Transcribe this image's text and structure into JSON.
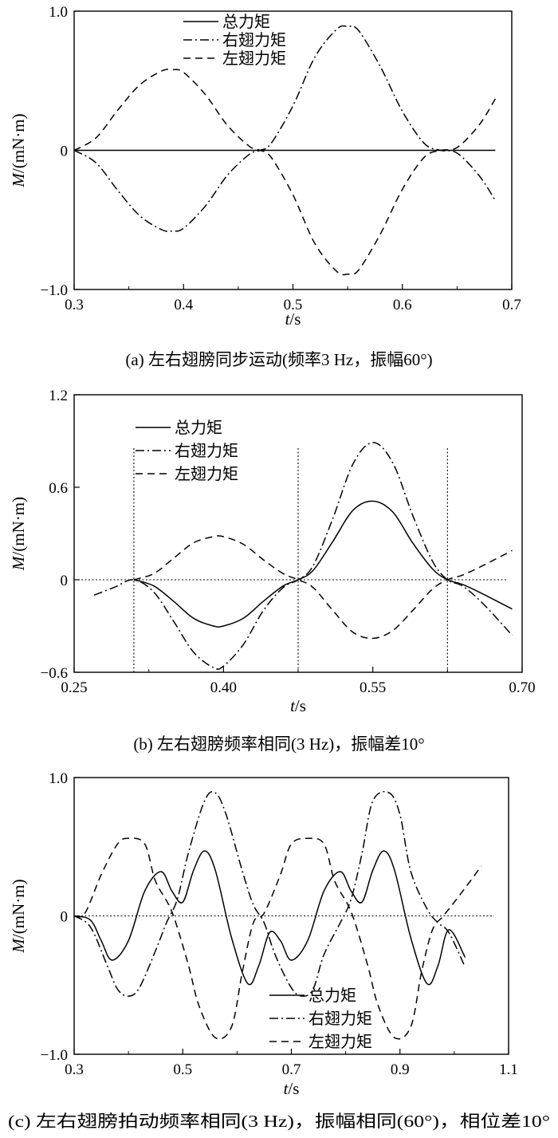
{
  "chart_data": [
    {
      "type": "line",
      "caption": "(a) 左右翅膀同步运动(频率3 Hz，振幅60°)",
      "xlabel_var": "t",
      "xlabel_unit": "/s",
      "ylabel_var": "M",
      "ylabel_unit": "/(mN·m)",
      "xlim": [
        0.3,
        0.7
      ],
      "ylim": [
        -1.0,
        1.0
      ],
      "xticks": [
        0.3,
        0.4,
        0.5,
        0.6,
        0.7
      ],
      "xtick_labels": [
        "0.3",
        "0.4",
        "0.5",
        "0.6",
        "0.7"
      ],
      "yticks": [
        1.0,
        0,
        -1.0
      ],
      "ytick_labels": [
        "1.0",
        "0",
        "−1.0"
      ],
      "legend": [
        "总力矩",
        "右翅力矩",
        "左翅力矩"
      ],
      "legend_position": "top-center",
      "vlines": [],
      "zero_line": false,
      "series": [
        {
          "name": "总力矩",
          "style": "solid",
          "x": [
            0.3,
            0.685
          ],
          "y": [
            0,
            0
          ]
        },
        {
          "name": "右翅力矩",
          "style": "dashdot",
          "x": [
            0.3,
            0.32,
            0.34,
            0.36,
            0.38,
            0.39,
            0.4,
            0.42,
            0.44,
            0.46,
            0.47,
            0.48,
            0.5,
            0.52,
            0.54,
            0.55,
            0.56,
            0.58,
            0.6,
            0.62,
            0.635,
            0.65,
            0.67,
            0.685
          ],
          "y": [
            0,
            -0.09,
            -0.29,
            -0.47,
            -0.57,
            -0.58,
            -0.56,
            -0.4,
            -0.18,
            -0.03,
            0,
            0.05,
            0.32,
            0.67,
            0.87,
            0.89,
            0.86,
            0.6,
            0.28,
            0.05,
            0,
            -0.02,
            -0.18,
            -0.36
          ]
        },
        {
          "name": "左翅力矩",
          "style": "dashed",
          "x": [
            0.3,
            0.32,
            0.34,
            0.36,
            0.38,
            0.39,
            0.4,
            0.42,
            0.44,
            0.46,
            0.47,
            0.48,
            0.5,
            0.52,
            0.54,
            0.55,
            0.56,
            0.58,
            0.6,
            0.62,
            0.635,
            0.65,
            0.67,
            0.685
          ],
          "y": [
            0,
            0.09,
            0.29,
            0.47,
            0.57,
            0.58,
            0.56,
            0.4,
            0.18,
            0.03,
            0,
            -0.05,
            -0.32,
            -0.67,
            -0.87,
            -0.89,
            -0.86,
            -0.6,
            -0.28,
            -0.05,
            0,
            0.02,
            0.18,
            0.37
          ]
        }
      ]
    },
    {
      "type": "line",
      "caption": "(b) 左右翅膀频率相同(3 Hz)，振幅差10°",
      "xlabel_var": "t",
      "xlabel_unit": "/s",
      "ylabel_var": "M",
      "ylabel_unit": "/(mN·m)",
      "xlim": [
        0.25,
        0.7
      ],
      "ylim": [
        -0.6,
        1.2
      ],
      "xticks": [
        0.25,
        0.4,
        0.55,
        0.7
      ],
      "xtick_labels": [
        "0.25",
        "0.40",
        "0.55",
        "0.70"
      ],
      "yticks": [
        1.2,
        0.6,
        0,
        -0.6
      ],
      "ytick_labels": [
        "1.2",
        "0.6",
        "0",
        "−0.6"
      ],
      "legend": [
        "总力矩",
        "右翅力矩",
        "左翅力矩"
      ],
      "legend_position": "top-left",
      "vlines": [
        0.31,
        0.475,
        0.625
      ],
      "zero_line": true,
      "series": [
        {
          "name": "总力矩",
          "style": "solid",
          "x": [
            0.31,
            0.33,
            0.35,
            0.37,
            0.39,
            0.4,
            0.42,
            0.44,
            0.46,
            0.475,
            0.49,
            0.51,
            0.53,
            0.55,
            0.57,
            0.59,
            0.61,
            0.625,
            0.64,
            0.66,
            0.69
          ],
          "y": [
            0,
            -0.04,
            -0.14,
            -0.25,
            -0.3,
            -0.3,
            -0.25,
            -0.14,
            -0.04,
            0,
            0.06,
            0.25,
            0.45,
            0.51,
            0.44,
            0.24,
            0.07,
            0,
            -0.03,
            -0.09,
            -0.19
          ]
        },
        {
          "name": "右翅力矩",
          "style": "dashdot",
          "x": [
            0.27,
            0.29,
            0.31,
            0.33,
            0.35,
            0.37,
            0.39,
            0.4,
            0.42,
            0.44,
            0.46,
            0.475,
            0.49,
            0.51,
            0.53,
            0.55,
            0.57,
            0.59,
            0.61,
            0.625,
            0.64,
            0.66,
            0.69
          ],
          "y": [
            -0.1,
            -0.05,
            0,
            -0.08,
            -0.27,
            -0.47,
            -0.57,
            -0.56,
            -0.42,
            -0.2,
            -0.05,
            0,
            0.09,
            0.4,
            0.75,
            0.89,
            0.76,
            0.42,
            0.12,
            0,
            -0.04,
            -0.15,
            -0.36
          ]
        },
        {
          "name": "左翅力矩",
          "style": "dashed",
          "x": [
            0.31,
            0.33,
            0.35,
            0.37,
            0.39,
            0.4,
            0.42,
            0.44,
            0.46,
            0.475,
            0.49,
            0.51,
            0.53,
            0.55,
            0.57,
            0.59,
            0.61,
            0.625,
            0.64,
            0.66,
            0.69
          ],
          "y": [
            0,
            0.04,
            0.14,
            0.24,
            0.28,
            0.28,
            0.23,
            0.13,
            0.04,
            0,
            -0.05,
            -0.2,
            -0.34,
            -0.38,
            -0.33,
            -0.2,
            -0.06,
            0,
            0.03,
            0.09,
            0.19
          ]
        }
      ]
    },
    {
      "type": "line",
      "caption": "(c) 左右翅膀拍动频率相同(3 Hz)，振幅相同(60°)，相位差10°",
      "xlabel_var": "t",
      "xlabel_unit": "/s",
      "ylabel_var": "M",
      "ylabel_unit": "/(mN·m)",
      "xlim": [
        0.3,
        1.1
      ],
      "ylim": [
        -1.0,
        1.0
      ],
      "xticks": [
        0.3,
        0.5,
        0.7,
        0.9,
        1.1
      ],
      "xtick_labels": [
        "0.3",
        "0.5",
        "0.7",
        "0.9",
        "1.1"
      ],
      "yticks": [
        1.0,
        0,
        -1.0
      ],
      "ytick_labels": [
        "1.0",
        "0",
        "−1.0"
      ],
      "legend": [
        "总力矩",
        "右翅力矩",
        "左翅力矩"
      ],
      "legend_position": "bottom-center",
      "vlines": [],
      "zero_line": true,
      "series": [
        {
          "name": "总力矩",
          "style": "solid",
          "x": [
            0.3,
            0.33,
            0.35,
            0.37,
            0.4,
            0.43,
            0.46,
            0.48,
            0.5,
            0.52,
            0.54,
            0.56,
            0.59,
            0.62,
            0.64,
            0.66,
            0.68,
            0.7,
            0.73,
            0.76,
            0.79,
            0.81,
            0.83,
            0.85,
            0.87,
            0.89,
            0.92,
            0.95,
            0.97,
            0.99,
            1.02
          ],
          "y": [
            0,
            -0.03,
            -0.18,
            -0.32,
            -0.18,
            0.18,
            0.32,
            0.18,
            0.1,
            0.33,
            0.47,
            0.33,
            -0.16,
            -0.49,
            -0.36,
            -0.12,
            -0.18,
            -0.32,
            -0.18,
            0.18,
            0.32,
            0.18,
            0.1,
            0.33,
            0.47,
            0.33,
            -0.16,
            -0.49,
            -0.36,
            -0.1,
            -0.3
          ]
        },
        {
          "name": "右翅力矩",
          "style": "dashdot",
          "x": [
            0.3,
            0.33,
            0.36,
            0.38,
            0.4,
            0.42,
            0.45,
            0.47,
            0.49,
            0.51,
            0.54,
            0.56,
            0.58,
            0.61,
            0.63,
            0.65,
            0.67,
            0.7,
            0.72,
            0.74,
            0.76,
            0.79,
            0.81,
            0.83,
            0.85,
            0.88,
            0.9,
            0.92,
            0.95,
            0.97,
            0.99,
            1.02
          ],
          "y": [
            0,
            -0.08,
            -0.35,
            -0.53,
            -0.58,
            -0.52,
            -0.25,
            -0.05,
            0.12,
            0.45,
            0.83,
            0.89,
            0.73,
            0.32,
            0.08,
            -0.05,
            -0.28,
            -0.52,
            -0.58,
            -0.53,
            -0.28,
            -0.05,
            0.12,
            0.45,
            0.83,
            0.89,
            0.73,
            0.32,
            0.05,
            -0.05,
            -0.12,
            -0.37
          ]
        },
        {
          "name": "左翅力矩",
          "style": "dashed",
          "x": [
            0.3,
            0.32,
            0.35,
            0.38,
            0.4,
            0.43,
            0.45,
            0.48,
            0.51,
            0.53,
            0.56,
            0.59,
            0.61,
            0.63,
            0.65,
            0.68,
            0.7,
            0.73,
            0.76,
            0.78,
            0.81,
            0.84,
            0.86,
            0.89,
            0.92,
            0.94,
            0.96,
            0.98,
            1.01,
            1.05
          ],
          "y": [
            0,
            0.02,
            0.3,
            0.52,
            0.56,
            0.52,
            0.25,
            0.03,
            -0.35,
            -0.65,
            -0.88,
            -0.8,
            -0.4,
            -0.05,
            0.02,
            0.3,
            0.52,
            0.56,
            0.52,
            0.25,
            0.03,
            -0.35,
            -0.65,
            -0.88,
            -0.8,
            -0.4,
            -0.1,
            0.0,
            0.15,
            0.36
          ]
        }
      ]
    }
  ]
}
